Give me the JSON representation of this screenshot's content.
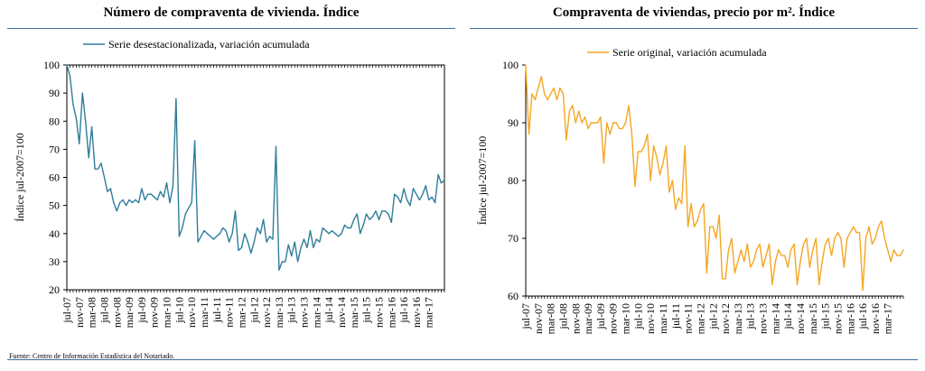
{
  "chart_data": [
    {
      "type": "line",
      "title": "Número de compraventa de vivienda. Índice",
      "ylabel": "Índice jul-2007=100",
      "xlabel": "",
      "ylim": [
        20,
        100
      ],
      "yticks": [
        20,
        30,
        40,
        50,
        60,
        70,
        80,
        90,
        100
      ],
      "x_tick_labels": [
        "jul-07",
        "nov-07",
        "mar-08",
        "jul-08",
        "nov-08",
        "mar-09",
        "jul-09",
        "nov-09",
        "mar-10",
        "jul-10",
        "nov-10",
        "mar-11",
        "jul-11",
        "nov-11",
        "mar-12",
        "jul-12",
        "nov-12",
        "mar-13",
        "jul-13",
        "nov-13",
        "mar-14",
        "jul-14",
        "nov-14",
        "mar-15",
        "jul-15",
        "nov-15",
        "mar-16",
        "jul-16",
        "nov-16",
        "mar-17"
      ],
      "legend_position": "top-center",
      "series": [
        {
          "name": "Serie desestacionalizada, variación acumulada",
          "color": "#2e7d9a",
          "values": [
            100,
            96,
            86,
            81,
            72,
            90,
            80,
            67,
            78,
            63,
            63,
            65,
            60,
            55,
            56,
            51,
            48,
            51,
            52,
            50,
            52,
            51,
            52,
            51,
            56,
            52,
            54,
            54,
            53,
            52,
            55,
            53,
            58,
            51,
            57,
            88,
            39,
            42,
            47,
            49,
            51,
            73,
            37,
            39,
            41,
            40,
            39,
            38,
            39,
            40,
            42,
            41,
            37,
            40,
            48,
            34,
            35,
            40,
            37,
            33,
            37,
            42,
            40,
            45,
            37,
            39,
            38,
            71,
            27,
            30,
            30,
            36,
            32,
            37,
            30,
            35,
            38,
            35,
            41,
            35,
            38,
            37,
            42,
            41,
            40,
            41,
            40,
            39,
            40,
            43,
            42,
            42,
            45,
            47,
            40,
            43,
            47,
            45,
            46,
            48,
            45,
            48,
            48,
            47,
            44,
            54,
            53,
            51,
            56,
            52,
            50,
            56,
            54,
            52,
            54,
            57,
            52,
            53,
            51,
            61,
            58,
            59
          ]
        }
      ]
    },
    {
      "type": "line",
      "title": "Compraventa de viviendas, precio por m². Índice",
      "ylabel": "Índice jul-2007=100",
      "xlabel": "",
      "ylim": [
        60,
        100
      ],
      "yticks": [
        60,
        70,
        80,
        90,
        100
      ],
      "x_tick_labels": [
        "jul-07",
        "nov-07",
        "mar-08",
        "jul-08",
        "nov-08",
        "mar-09",
        "jul-09",
        "nov-09",
        "mar-10",
        "jul-10",
        "nov-10",
        "mar-11",
        "jul-11",
        "nov-11",
        "mar-12",
        "jul-12",
        "nov-12",
        "mar-13",
        "jul-13",
        "nov-13",
        "mar-14",
        "jul-14",
        "nov-14",
        "mar-15",
        "jul-15",
        "nov-15",
        "mar-16",
        "jul-16",
        "nov-16",
        "mar-17"
      ],
      "legend_position": "top-center",
      "series": [
        {
          "name": "Serie original, variación acumulada",
          "color": "#f5a623",
          "values": [
            100,
            88,
            95,
            94,
            96,
            98,
            95,
            94,
            95,
            96,
            94,
            96,
            95,
            87,
            92,
            93,
            90,
            92,
            90,
            91,
            89,
            90,
            90,
            90,
            91,
            83,
            90,
            88,
            90,
            90,
            89,
            89,
            90,
            93,
            88,
            79,
            85,
            85,
            86,
            88,
            80,
            86,
            84,
            81,
            83,
            86,
            78,
            80,
            75,
            77,
            76,
            86,
            72,
            76,
            72,
            73,
            75,
            76,
            64,
            72,
            72,
            70,
            74,
            63,
            63,
            68,
            70,
            64,
            66,
            68,
            66,
            69,
            65,
            66,
            68,
            69,
            65,
            67,
            69,
            62,
            66,
            68,
            67,
            67,
            65,
            68,
            69,
            62,
            66,
            69,
            70,
            65,
            68,
            70,
            62,
            66,
            69,
            70,
            67,
            70,
            71,
            70,
            65,
            70,
            71,
            72,
            71,
            71,
            61,
            70,
            72,
            69,
            70,
            72,
            73,
            70,
            68,
            66,
            68,
            67,
            67,
            68
          ]
        }
      ]
    }
  ],
  "footer": {
    "source": "Fuente: Centro de Información Estadística del Notariado."
  }
}
